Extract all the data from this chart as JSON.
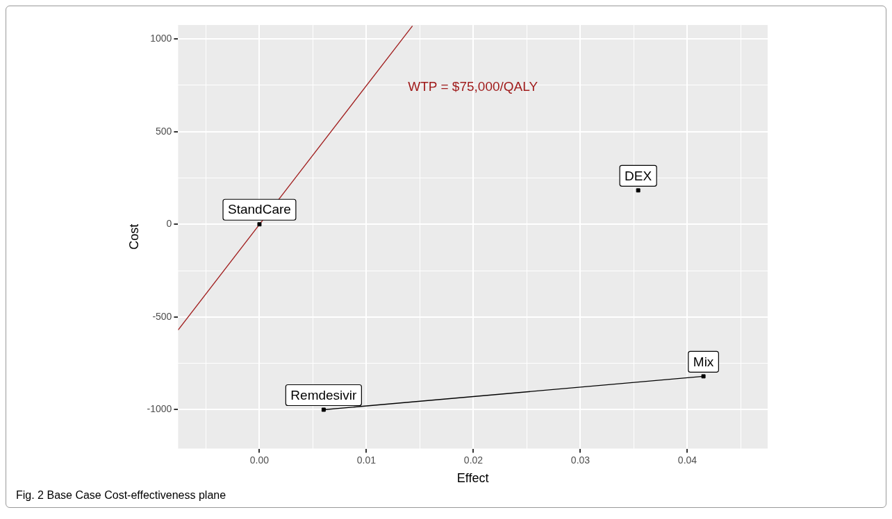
{
  "chart_data": {
    "type": "scatter",
    "xlabel": "Effect",
    "ylabel": "Cost",
    "xlim": [
      -0.0076,
      0.0475
    ],
    "ylim": [
      -1210,
      1075
    ],
    "xticks": [
      {
        "value": -0.005,
        "label": null
      },
      {
        "value": 0,
        "label": "0.00"
      },
      {
        "value": 0.005,
        "label": null
      },
      {
        "value": 0.01,
        "label": "0.01"
      },
      {
        "value": 0.015,
        "label": null
      },
      {
        "value": 0.02,
        "label": "0.02"
      },
      {
        "value": 0.025,
        "label": null
      },
      {
        "value": 0.03,
        "label": "0.03"
      },
      {
        "value": 0.035,
        "label": null
      },
      {
        "value": 0.04,
        "label": "0.04"
      },
      {
        "value": 0.045,
        "label": null
      }
    ],
    "yticks": [
      -1000,
      {
        "value": -750,
        "label": null
      },
      -500,
      {
        "value": -250,
        "label": null
      },
      0,
      {
        "value": 250,
        "label": null
      },
      500,
      {
        "value": 750,
        "label": null
      },
      1000
    ],
    "grid": true,
    "legend": false,
    "marker": "square",
    "series": [
      {
        "name": "StandCare",
        "color": "#000000",
        "x": [
          0
        ],
        "values": [
          0
        ]
      },
      {
        "name": "DEX",
        "color": "#000000",
        "x": [
          0.0354
        ],
        "values": [
          183
        ]
      },
      {
        "name": "Remdesivir",
        "color": "#000000",
        "x": [
          0.006
        ],
        "values": [
          -1000
        ]
      },
      {
        "name": "Mix",
        "color": "#000000",
        "x": [
          0.0415
        ],
        "values": [
          -820
        ]
      },
      {
        "type": "line",
        "marker": "none",
        "color": "#000000",
        "x": [
          0.006,
          0.0415
        ],
        "values": [
          -1000,
          -820
        ]
      },
      {
        "type": "line",
        "marker": "none",
        "color": "#a01c1c",
        "x": [
          -0.0076,
          0.0143
        ],
        "values": [
          -570,
          1070
        ]
      }
    ],
    "annotations": [
      "WTP = $75,000/QALY",
      "Fig. 2 Base Case Cost-effectiveness plane"
    ]
  }
}
